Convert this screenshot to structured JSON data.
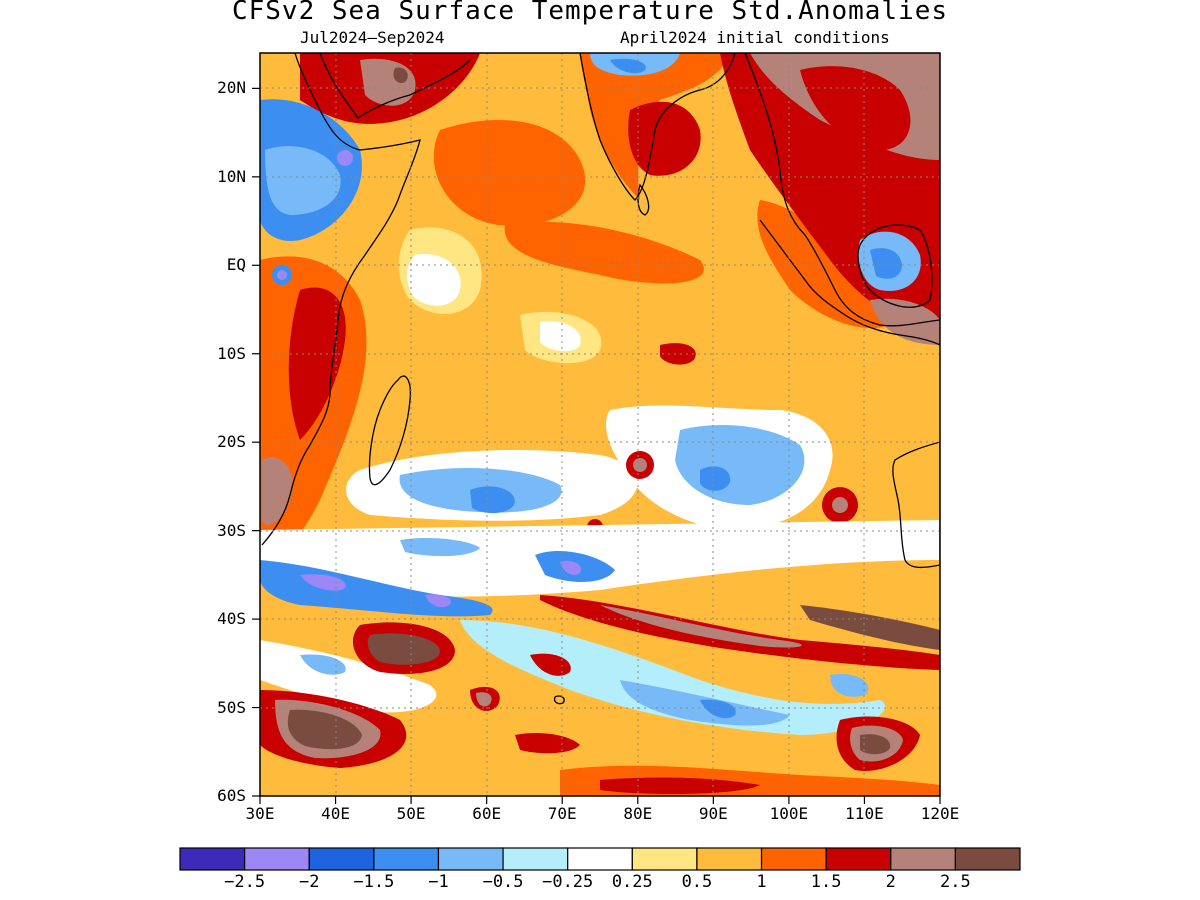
{
  "title": "CFSv2 Sea Surface Temperature Std.Anomalies",
  "subtitle_left": "Jul2024—Sep2024",
  "subtitle_right": "April2024 initial conditions",
  "map": {
    "lon_range": [
      30,
      120
    ],
    "lat_range": [
      -60,
      24
    ],
    "lat_ticks": [
      {
        "value": 20,
        "label": "20N"
      },
      {
        "value": 10,
        "label": "10N"
      },
      {
        "value": 0,
        "label": "EQ"
      },
      {
        "value": -10,
        "label": "10S"
      },
      {
        "value": -20,
        "label": "20S"
      },
      {
        "value": -30,
        "label": "30S"
      },
      {
        "value": -40,
        "label": "40S"
      },
      {
        "value": -50,
        "label": "50S"
      },
      {
        "value": -60,
        "label": "60S"
      }
    ],
    "lon_ticks": [
      {
        "value": 30,
        "label": "30E"
      },
      {
        "value": 40,
        "label": "40E"
      },
      {
        "value": 50,
        "label": "50E"
      },
      {
        "value": 60,
        "label": "60E"
      },
      {
        "value": 70,
        "label": "70E"
      },
      {
        "value": 80,
        "label": "80E"
      },
      {
        "value": 90,
        "label": "90E"
      },
      {
        "value": 100,
        "label": "100E"
      },
      {
        "value": 110,
        "label": "110E"
      },
      {
        "value": 120,
        "label": "120E"
      }
    ],
    "grid": "dotted",
    "background_level": "0.5 to 1"
  },
  "colorbar": {
    "colors": [
      "#3b2bb8",
      "#9b87f5",
      "#1e64e0",
      "#3c8ff0",
      "#78b9f7",
      "#b4eefa",
      "#ffffff",
      "#ffe682",
      "#ffbb3c",
      "#ff6400",
      "#c80000",
      "#b48278",
      "#7a4c40"
    ],
    "labels": [
      "−2.5",
      "−2",
      "−1.5",
      "−1",
      "−0.5",
      "−0.25",
      "0.25",
      "0.5",
      "1",
      "1.5",
      "2",
      "2.5"
    ]
  }
}
